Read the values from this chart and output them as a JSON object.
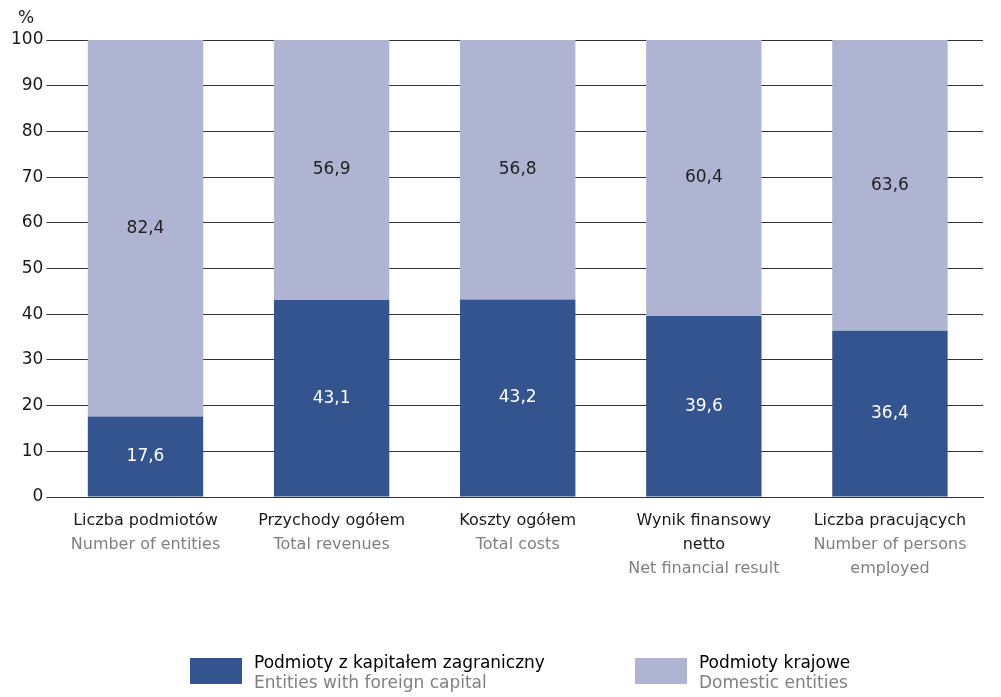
{
  "chart_data": {
    "type": "bar",
    "stacked": true,
    "ylabel": "%",
    "ylim": [
      0,
      100
    ],
    "yticks": [
      0,
      10,
      20,
      30,
      40,
      50,
      60,
      70,
      80,
      90,
      100
    ],
    "grid": "y",
    "legend": "bottom",
    "categories": [
      "Liczba podmiotów\nNumber of entities",
      "Przychody ogółem\nTotal revenues",
      "Koszty ogółem\nTotal costs",
      "Wynik finansowy netto\nNet financial result",
      "Liczba pracujących\nNumber of persons employed"
    ],
    "series": [
      {
        "name": "Podmioty z kapitałem zagraniczny\nEntities with foreign capital",
        "color": "#33548e",
        "values": [
          17.6,
          43.1,
          43.2,
          39.6,
          36.4
        ],
        "value_labels": [
          "17,6",
          "43,1",
          "43,2",
          "39,6",
          "36,4"
        ]
      },
      {
        "name": "Podmioty krajowe\nDomestic entities",
        "color": "#afb4d3",
        "values": [
          82.4,
          56.9,
          56.8,
          60.4,
          63.6
        ],
        "value_labels": [
          "82,4",
          "56,9",
          "56,8",
          "60,4",
          "63,6"
        ]
      }
    ]
  }
}
